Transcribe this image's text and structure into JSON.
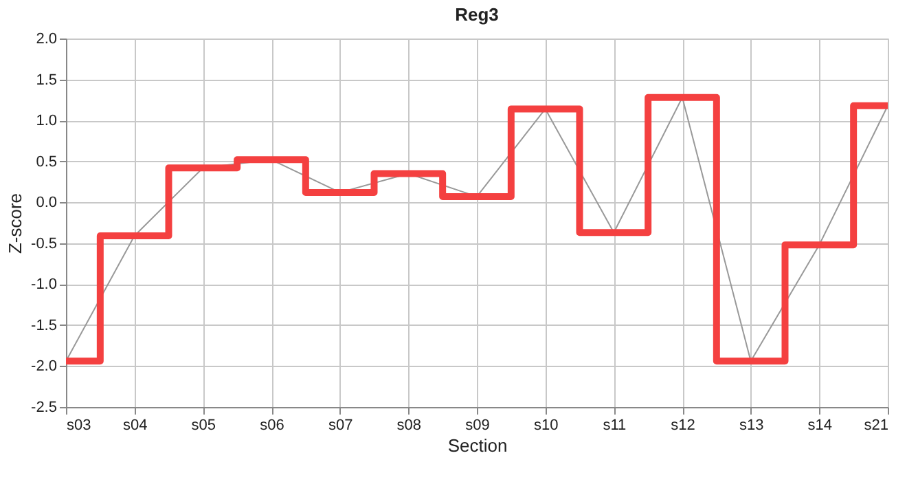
{
  "chart_data": {
    "type": "line",
    "title": "Reg3",
    "xlabel": "Section",
    "ylabel": "Z-score",
    "categories": [
      "s03",
      "s04",
      "s05",
      "s06",
      "s07",
      "s08",
      "s09",
      "s10",
      "s11",
      "s12",
      "s13",
      "s14",
      "s21"
    ],
    "series": [
      {
        "color": "#999999",
        "values": [
          -1.94,
          -0.41,
          0.42,
          0.52,
          0.12,
          0.35,
          0.07,
          1.14,
          -0.37,
          1.28,
          -1.94,
          -0.52,
          1.18
        ]
      },
      {
        "type": "step",
        "color": "#f44040",
        "values": [
          -1.94,
          -0.41,
          0.42,
          0.52,
          0.12,
          0.35,
          0.07,
          1.14,
          -0.37,
          1.28,
          -1.94,
          -0.52,
          1.18
        ]
      }
    ],
    "ylim": [
      -2.5,
      2.0
    ],
    "yticks": [
      -2.5,
      {
        "value": -2,
        "label": "-2.0"
      },
      -1.5,
      {
        "value": -1,
        "label": "-1.0"
      },
      -0.5,
      {
        "value": 0,
        "label": "0.0"
      },
      0.5,
      {
        "value": 1,
        "label": "1.0"
      },
      1.5,
      {
        "value": 2,
        "label": "2.0"
      }
    ],
    "grid": true
  }
}
